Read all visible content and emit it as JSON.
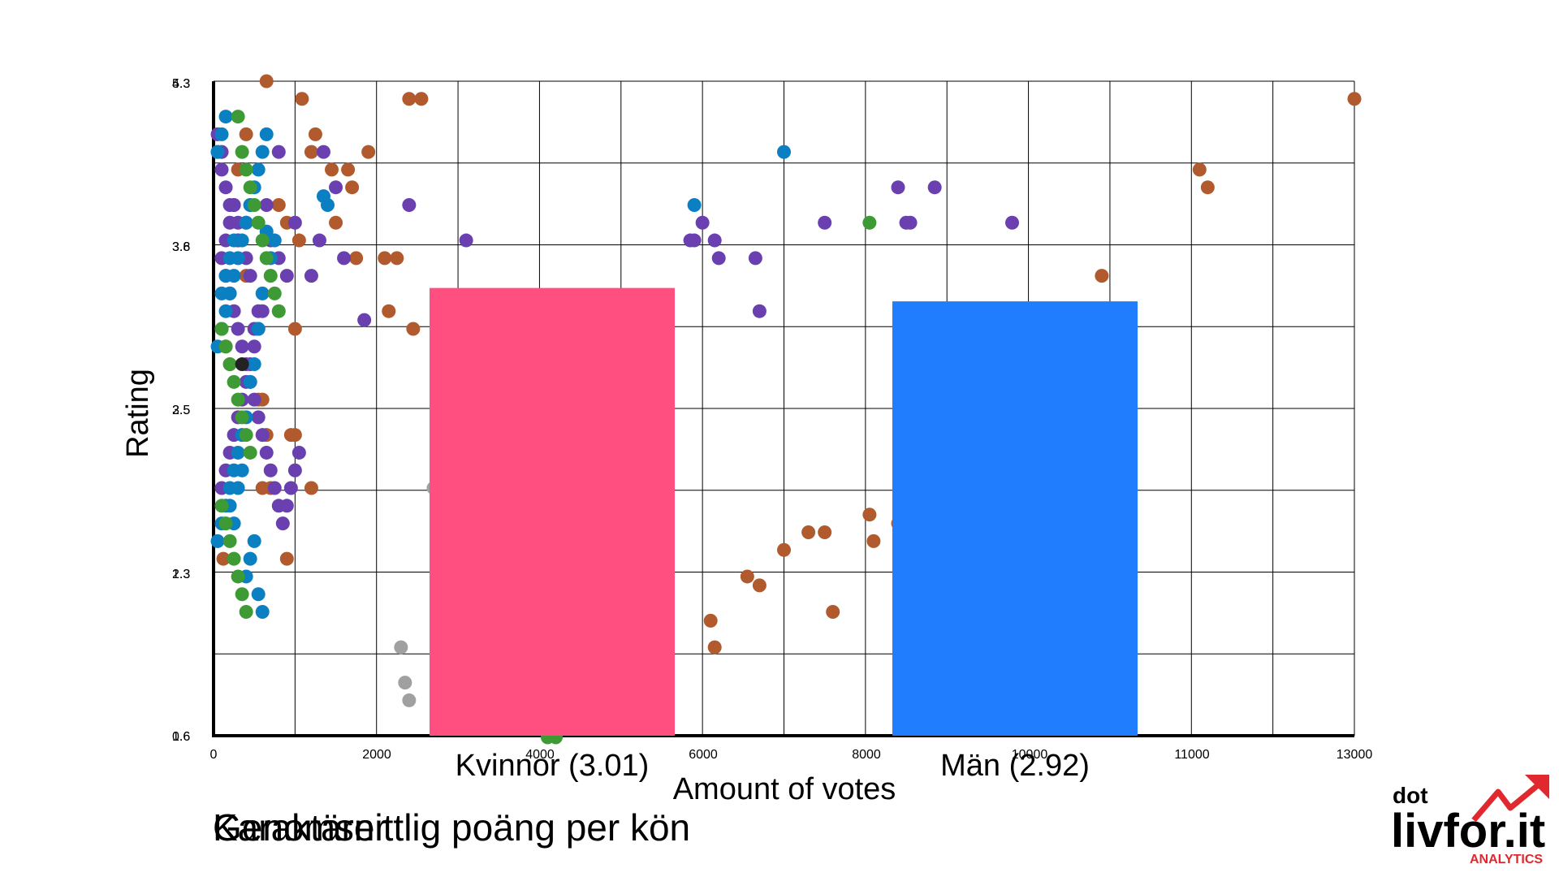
{
  "chart_data": [
    {
      "type": "scatter",
      "xlabel": "Amount of votes",
      "ylabel": "Rating",
      "xlim": [
        0,
        14000
      ],
      "ylim": [
        0.6,
        4.3
      ],
      "x_ticks": [
        "0",
        "2000",
        "4000",
        "6000",
        "8000",
        "10000",
        "11000",
        "13000"
      ],
      "y_ticks_primary": [
        "1.6",
        "2.3",
        "2.5",
        "3.8",
        "5.3"
      ],
      "y_ticks_secondary": [
        "0.6",
        "1.3",
        "3.5",
        "3.6",
        "4.3"
      ],
      "grid": true,
      "colors": {
        "brown": "#b05a2e",
        "purple": "#6a3fb0",
        "blue": "#0a7fc2",
        "green": "#3e9a34",
        "grey": "#a0a0a0",
        "black": "#222222"
      },
      "series": [
        {
          "color": "brown",
          "points": [
            [
              1085,
              4.2
            ],
            [
              14000,
              4.2
            ],
            [
              12100,
              3.8
            ],
            [
              12200,
              3.7
            ],
            [
              10900,
              3.2
            ],
            [
              9700,
              1.95
            ],
            [
              8400,
              1.8
            ],
            [
              8100,
              1.7
            ],
            [
              8050,
              1.85
            ],
            [
              7500,
              1.75
            ],
            [
              7600,
              1.3
            ],
            [
              7300,
              1.75
            ],
            [
              7000,
              1.65
            ],
            [
              6700,
              1.45
            ],
            [
              6550,
              1.5
            ],
            [
              6150,
              1.1
            ],
            [
              6100,
              1.25
            ],
            [
              5500,
              1.4
            ],
            [
              2450,
              2.9
            ],
            [
              2250,
              3.3
            ],
            [
              2100,
              3.3
            ],
            [
              1750,
              3.3
            ],
            [
              1700,
              3.7
            ],
            [
              1650,
              3.8
            ],
            [
              1500,
              3.5
            ],
            [
              1200,
              2.0
            ],
            [
              1050,
              3.4
            ],
            [
              1000,
              2.3
            ],
            [
              900,
              1.6
            ],
            [
              650,
              2.3
            ],
            [
              800,
              3.6
            ],
            [
              400,
              3.2
            ],
            [
              300,
              3.8
            ],
            [
              400,
              3.5
            ],
            [
              600,
              2.0
            ],
            [
              700,
              2.0
            ],
            [
              600,
              2.5
            ],
            [
              450,
              3.6
            ],
            [
              650,
              4.9
            ],
            [
              550,
              2.5
            ],
            [
              300,
              3.4
            ],
            [
              300,
              3.4
            ],
            [
              120,
              1.6
            ],
            [
              150,
              2.8
            ],
            [
              200,
              2.7
            ],
            [
              950,
              2.3
            ],
            [
              1000,
              2.9
            ],
            [
              1200,
              3.9
            ],
            [
              1250,
              4.0
            ],
            [
              400,
              4.0
            ],
            [
              900,
              3.5
            ],
            [
              2150,
              3.0
            ],
            [
              2550,
              4.2
            ],
            [
              2400,
              4.2
            ],
            [
              1450,
              3.8
            ],
            [
              1900,
              3.9
            ]
          ]
        },
        {
          "color": "purple",
          "points": [
            [
              9800,
              3.5
            ],
            [
              8850,
              3.7
            ],
            [
              8550,
              3.5
            ],
            [
              8500,
              3.5
            ],
            [
              8400,
              3.7
            ],
            [
              7500,
              3.5
            ],
            [
              6700,
              3.0
            ],
            [
              6650,
              3.3
            ],
            [
              6200,
              3.3
            ],
            [
              6150,
              3.4
            ],
            [
              6000,
              3.5
            ],
            [
              5900,
              3.4
            ],
            [
              5850,
              3.4
            ],
            [
              3100,
              3.4
            ],
            [
              2900,
              2.9
            ],
            [
              2400,
              3.6
            ],
            [
              1850,
              2.95
            ],
            [
              1600,
              3.3
            ],
            [
              1500,
              3.7
            ],
            [
              1350,
              3.9
            ],
            [
              1300,
              3.4
            ],
            [
              1200,
              3.2
            ],
            [
              1000,
              3.5
            ],
            [
              900,
              3.2
            ],
            [
              800,
              3.3
            ],
            [
              800,
              3.9
            ],
            [
              700,
              3.4
            ],
            [
              650,
              3.6
            ],
            [
              550,
              3.0
            ],
            [
              500,
              2.9
            ],
            [
              450,
              3.2
            ],
            [
              400,
              3.3
            ],
            [
              300,
              3.4
            ],
            [
              300,
              3.5
            ],
            [
              250,
              3.6
            ],
            [
              200,
              3.6
            ],
            [
              150,
              3.7
            ],
            [
              100,
              3.8
            ],
            [
              100,
              3.9
            ],
            [
              50,
              3.9
            ],
            [
              50,
              4.0
            ],
            [
              150,
              3.2
            ],
            [
              200,
              3.1
            ],
            [
              250,
              3.0
            ],
            [
              300,
              2.9
            ],
            [
              350,
              2.8
            ],
            [
              400,
              2.7
            ],
            [
              450,
              2.6
            ],
            [
              500,
              2.5
            ],
            [
              550,
              2.4
            ],
            [
              600,
              2.3
            ],
            [
              650,
              2.2
            ],
            [
              700,
              2.1
            ],
            [
              750,
              2.0
            ],
            [
              800,
              1.9
            ],
            [
              850,
              1.8
            ],
            [
              900,
              1.9
            ],
            [
              950,
              2.0
            ],
            [
              1000,
              2.1
            ],
            [
              1050,
              2.2
            ],
            [
              100,
              2.0
            ],
            [
              150,
              2.1
            ],
            [
              200,
              2.2
            ],
            [
              250,
              2.3
            ],
            [
              300,
              2.4
            ],
            [
              350,
              2.5
            ],
            [
              400,
              2.6
            ],
            [
              450,
              2.7
            ],
            [
              500,
              2.8
            ],
            [
              550,
              2.9
            ],
            [
              600,
              3.0
            ],
            [
              100,
              3.3
            ],
            [
              150,
              3.4
            ],
            [
              200,
              3.5
            ],
            [
              250,
              3.6
            ]
          ]
        },
        {
          "color": "blue",
          "points": [
            [
              7000,
              3.9
            ],
            [
              5900,
              3.6
            ],
            [
              1400,
              3.6
            ],
            [
              1350,
              3.65
            ],
            [
              750,
              3.4
            ],
            [
              700,
              3.3
            ],
            [
              650,
              3.45
            ],
            [
              600,
              3.1
            ],
            [
              550,
              2.9
            ],
            [
              500,
              2.7
            ],
            [
              450,
              2.6
            ],
            [
              400,
              2.4
            ],
            [
              350,
              2.3
            ],
            [
              300,
              2.2
            ],
            [
              250,
              2.1
            ],
            [
              200,
              2.0
            ],
            [
              150,
              1.9
            ],
            [
              100,
              1.8
            ],
            [
              50,
              1.7
            ],
            [
              50,
              2.8
            ],
            [
              100,
              2.9
            ],
            [
              150,
              3.0
            ],
            [
              200,
              3.1
            ],
            [
              250,
              3.2
            ],
            [
              300,
              3.3
            ],
            [
              350,
              3.4
            ],
            [
              400,
              3.5
            ],
            [
              450,
              3.6
            ],
            [
              500,
              3.7
            ],
            [
              550,
              3.8
            ],
            [
              600,
              3.9
            ],
            [
              650,
              4.0
            ],
            [
              50,
              3.9
            ],
            [
              100,
              4.0
            ],
            [
              150,
              4.1
            ],
            [
              100,
              3.1
            ],
            [
              150,
              3.2
            ],
            [
              200,
              3.3
            ],
            [
              250,
              3.4
            ],
            [
              300,
              2.0
            ],
            [
              350,
              2.1
            ],
            [
              400,
              1.5
            ],
            [
              450,
              1.6
            ],
            [
              500,
              1.7
            ],
            [
              550,
              1.4
            ],
            [
              600,
              1.3
            ],
            [
              250,
              1.8
            ],
            [
              200,
              1.9
            ]
          ]
        },
        {
          "color": "green",
          "points": [
            [
              8050,
              3.5
            ],
            [
              300,
              4.1
            ],
            [
              350,
              3.9
            ],
            [
              400,
              3.8
            ],
            [
              450,
              3.7
            ],
            [
              500,
              3.6
            ],
            [
              550,
              3.5
            ],
            [
              600,
              3.4
            ],
            [
              650,
              3.3
            ],
            [
              700,
              3.2
            ],
            [
              750,
              3.1
            ],
            [
              800,
              3.0
            ],
            [
              100,
              2.9
            ],
            [
              150,
              2.8
            ],
            [
              200,
              2.7
            ],
            [
              250,
              2.6
            ],
            [
              300,
              2.5
            ],
            [
              350,
              2.4
            ],
            [
              400,
              2.3
            ],
            [
              450,
              2.2
            ],
            [
              100,
              1.9
            ],
            [
              150,
              1.8
            ],
            [
              200,
              1.7
            ],
            [
              250,
              1.6
            ],
            [
              300,
              1.5
            ],
            [
              350,
              1.4
            ],
            [
              400,
              1.3
            ],
            [
              4100,
              0.5
            ],
            [
              4200,
              0.5
            ]
          ]
        },
        {
          "color": "grey",
          "points": [
            [
              2300,
              1.1
            ],
            [
              2350,
              0.9
            ],
            [
              2400,
              0.8
            ],
            [
              2700,
              2.0
            ],
            [
              2750,
              2.1
            ],
            [
              2800,
              1.7
            ]
          ]
        },
        {
          "color": "black",
          "points": [
            [
              350,
              2.7
            ]
          ]
        }
      ]
    },
    {
      "type": "bar",
      "categories": [
        "Kvinnor (3.01)",
        "Män (2.92)"
      ],
      "values": [
        3.01,
        2.92
      ],
      "colors": [
        "#ff4f81",
        "#1f7dfe"
      ]
    }
  ],
  "captions": {
    "first": "Karaktärer",
    "second": "Genomsnittlig poäng per kön"
  },
  "logo": {
    "top": "dot",
    "main": "livfor.it",
    "sub": "ANALYTICS"
  }
}
